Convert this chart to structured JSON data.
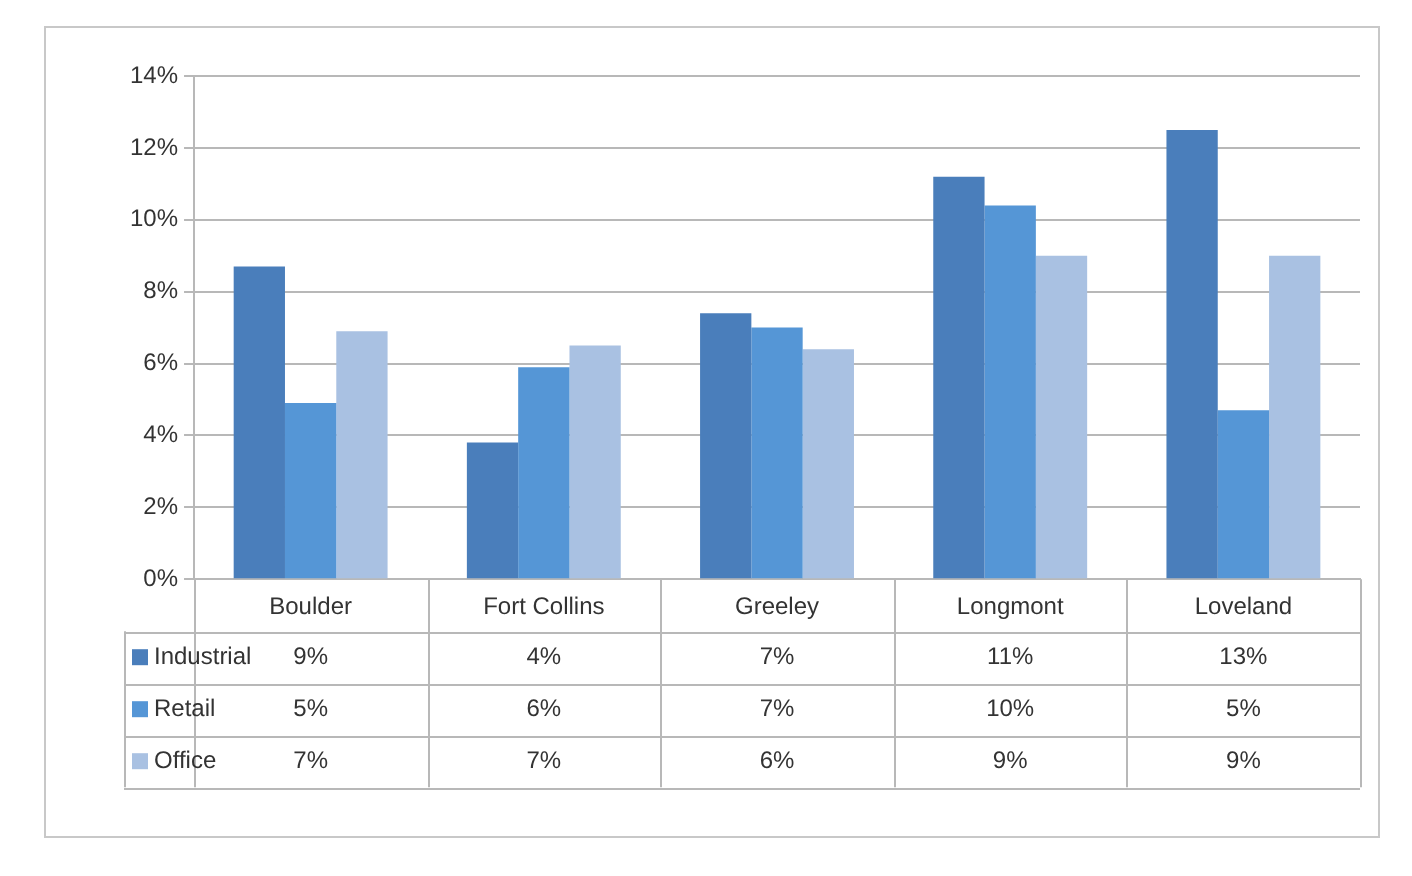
{
  "chart_data": {
    "type": "bar",
    "categories": [
      "Boulder",
      "Fort Collins",
      "Greeley",
      "Longmont",
      "Loveland"
    ],
    "series": [
      {
        "name": "Industrial",
        "color": "#4a7ebb",
        "values": [
          8.7,
          3.8,
          7.4,
          11.2,
          12.5
        ],
        "value_labels": [
          "9%",
          "4%",
          "7%",
          "11%",
          "13%"
        ]
      },
      {
        "name": "Retail",
        "color": "#5596d6",
        "values": [
          4.9,
          5.9,
          7.0,
          10.4,
          4.7
        ],
        "value_labels": [
          "5%",
          "6%",
          "7%",
          "10%",
          "5%"
        ]
      },
      {
        "name": "Office",
        "color": "#a9c1e2",
        "values": [
          6.9,
          6.5,
          6.4,
          9.0,
          9.0
        ],
        "value_labels": [
          "7%",
          "7%",
          "6%",
          "9%",
          "9%"
        ]
      }
    ],
    "ylim": [
      0,
      14
    ],
    "yticks": [
      {
        "value": 0,
        "label": "0%"
      },
      {
        "value": 2,
        "label": "2%"
      },
      {
        "value": 4,
        "label": "4%"
      },
      {
        "value": 6,
        "label": "6%"
      },
      {
        "value": 8,
        "label": "8%"
      },
      {
        "value": 10,
        "label": "10%"
      },
      {
        "value": 12,
        "label": "12%"
      },
      {
        "value": 14,
        "label": "14%"
      }
    ],
    "grid": "y",
    "legend": "bottom left"
  }
}
